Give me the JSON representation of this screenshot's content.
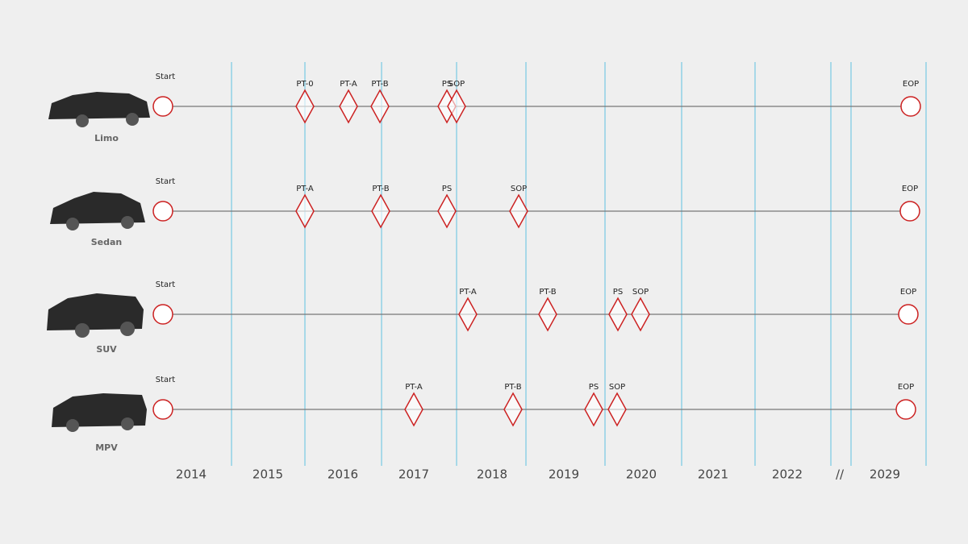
{
  "years": [
    "2014",
    "2015",
    "2016",
    "2017",
    "2018",
    "2019",
    "2020",
    "2021",
    "2022",
    "2029"
  ],
  "axis_break": "//",
  "rows": [
    {
      "name": "Limo",
      "start": "Start",
      "end": "EOP",
      "milestones": [
        "PT-0",
        "PT-A",
        "PT-B",
        "PS",
        "SOP"
      ]
    },
    {
      "name": "Sedan",
      "start": "Start",
      "end": "EOP",
      "milestones": [
        "PT-A",
        "PT-B",
        "PS",
        "SOP"
      ]
    },
    {
      "name": "SUV",
      "start": "Start",
      "end": "EOP",
      "milestones": [
        "PT-A",
        "PT-B",
        "PS",
        "SOP"
      ]
    },
    {
      "name": "MPV",
      "start": "Start",
      "end": "EOP",
      "milestones": [
        "PT-A",
        "PT-B",
        "PS",
        "SOP"
      ]
    }
  ]
}
